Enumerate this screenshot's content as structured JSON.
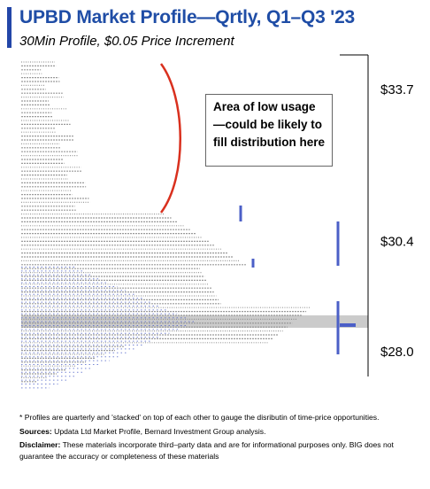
{
  "header": {
    "title": "UPBD Market Profile—Qrtly, Q1–Q3 '23",
    "subtitle": "30Min Profile, $0.05 Price Increment",
    "accent_color": "#1f4da6"
  },
  "callout": {
    "text": "Area of low usage—could be likely to fill distribution here"
  },
  "chart_data": {
    "type": "market_profile",
    "price_labels": [
      "$33.7",
      "$30.4",
      "$28.0"
    ],
    "price_values": [
      33.7,
      30.4,
      28.0
    ],
    "ylim": [
      27.6,
      34.1
    ],
    "series_colors": {
      "profile_letters": "#9a9a9a",
      "recent_profile": "#4b5fc7",
      "annotation_curve": "#d9301e"
    }
  },
  "footnotes": {
    "note": "* Profiles are quarterly and 'stacked' on top of each other to gauge the disributin of time-price opportunities.",
    "sources_label": "Sources:",
    "sources_text": " Updata Ltd Market Profile, Bernard Investment Group analysis.",
    "disclaimer_label": "Disclaimer:",
    "disclaimer_text": " These materials incorporate third–party data and are for informational purposes only. BIG does not guarantee the accuracy or completeness of these materials"
  }
}
